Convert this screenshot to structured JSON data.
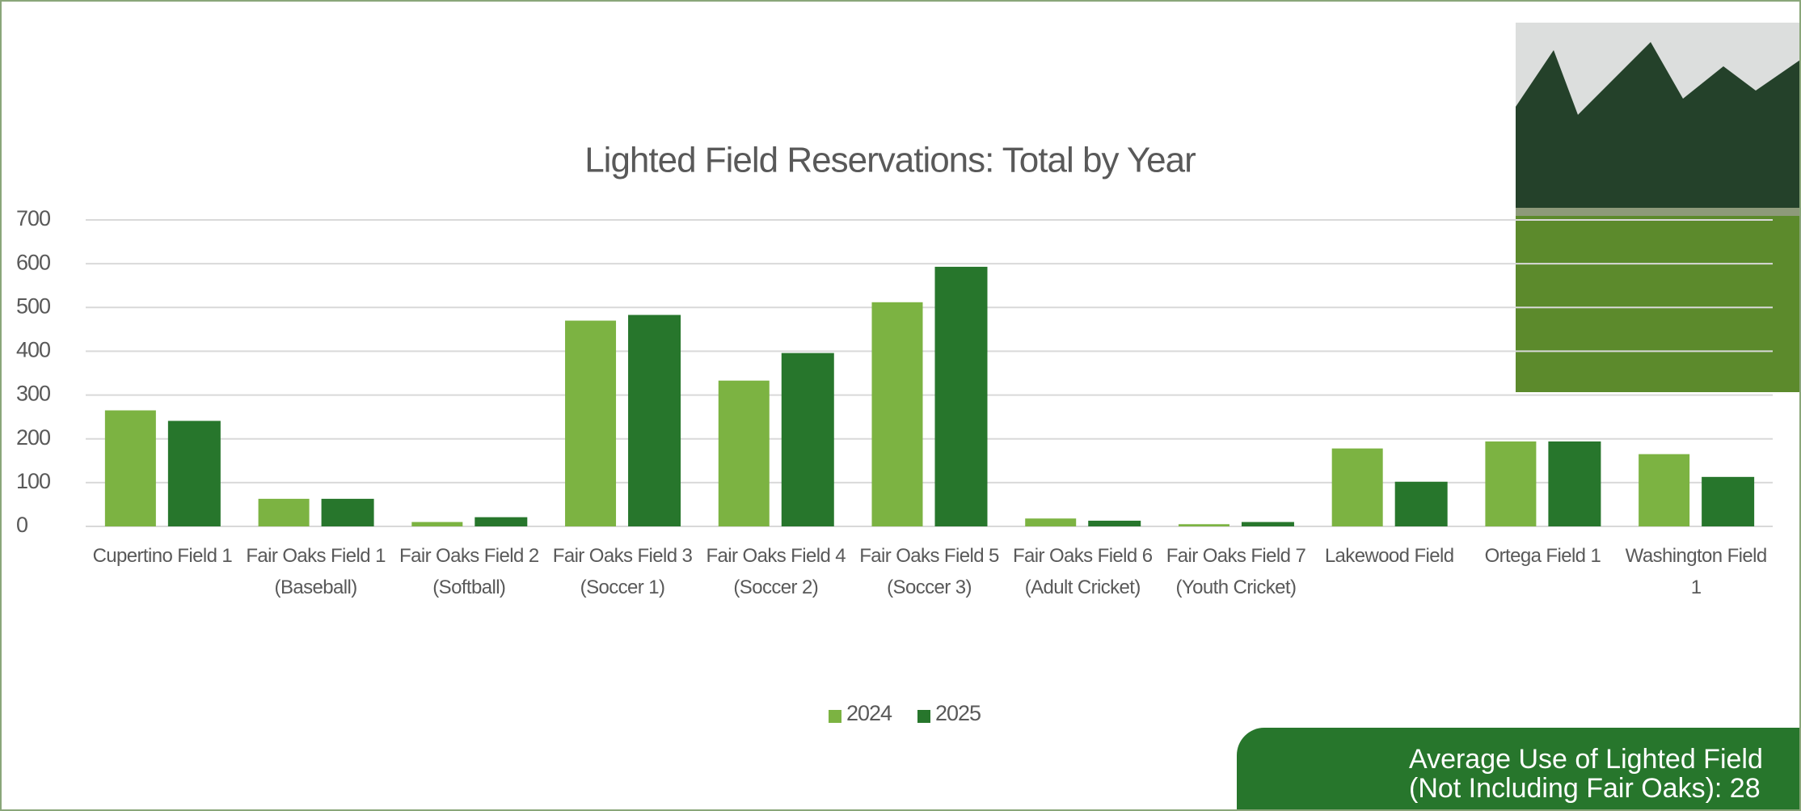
{
  "chart_data": {
    "type": "bar",
    "title": "Lighted Field Reservations: Total by Year",
    "categories": [
      "Cupertino Field 1",
      "Fair Oaks Field 1 (Baseball)",
      "Fair Oaks Field 2 (Softball)",
      "Fair Oaks Field 3 (Soccer 1)",
      "Fair Oaks Field 4 (Soccer 2)",
      "Fair Oaks Field 5 (Soccer 3)",
      "Fair Oaks Field 6 (Adult Cricket)",
      "Fair Oaks Field 7 (Youth Cricket)",
      "Lakewood Field",
      "Ortega Field 1",
      "Washington Field 1"
    ],
    "series": [
      {
        "name": "2024",
        "color": "#7cb342",
        "values": [
          265,
          63,
          10,
          470,
          333,
          512,
          18,
          5,
          178,
          194,
          165
        ]
      },
      {
        "name": "2025",
        "color": "#27762c",
        "values": [
          241,
          63,
          21,
          483,
          396,
          593,
          13,
          10,
          102,
          194,
          113
        ]
      }
    ],
    "ylim": [
      0,
      700
    ],
    "yticks": [
      0,
      100,
      200,
      300,
      400,
      500,
      600,
      700
    ],
    "grid": true,
    "legend": "bottom"
  },
  "callout": {
    "lines": [
      "Average Use of Lighted Field",
      "(Not Including Fair Oaks): 28"
    ]
  }
}
